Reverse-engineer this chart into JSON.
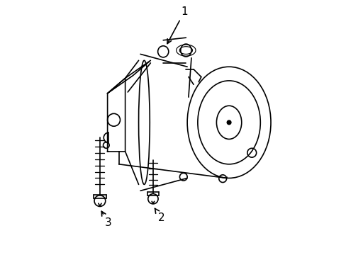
{
  "title": "",
  "background_color": "#ffffff",
  "line_color": "#000000",
  "line_width": 1.2,
  "labels": {
    "1": [
      0.52,
      0.93
    ],
    "2": [
      0.45,
      0.23
    ],
    "3": [
      0.18,
      0.07
    ]
  },
  "figsize": [
    4.89,
    3.6
  ],
  "dpi": 100
}
